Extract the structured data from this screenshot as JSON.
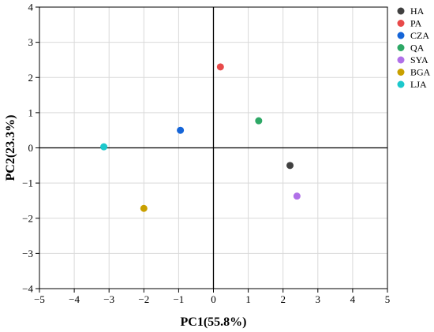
{
  "chart_data": {
    "type": "scatter",
    "title": "",
    "xlabel": "PC1(55.8%)",
    "ylabel": "PC2(23.3%)",
    "xlim": [
      -5,
      5
    ],
    "ylim": [
      -4,
      4
    ],
    "xticks": [
      "−5",
      "−4",
      "−3",
      "−2",
      "−1",
      "0",
      "1",
      "2",
      "3",
      "4",
      "5"
    ],
    "yticks": [
      "−4",
      "−3",
      "−2",
      "−1",
      "0",
      "1",
      "2",
      "3",
      "4"
    ],
    "grid": true,
    "legend_position": "top-right",
    "series": [
      {
        "name": "HA",
        "color": "#404040",
        "x": 2.2,
        "y": -0.5
      },
      {
        "name": "PA",
        "color": "#e84a4a",
        "x": 0.2,
        "y": 2.3
      },
      {
        "name": "CZA",
        "color": "#1565d8",
        "x": -0.95,
        "y": 0.5
      },
      {
        "name": "QA",
        "color": "#2ea866",
        "x": 1.3,
        "y": 0.77
      },
      {
        "name": "SYA",
        "color": "#b070e8",
        "x": 2.4,
        "y": -1.37
      },
      {
        "name": "BGA",
        "color": "#c9a000",
        "x": -2.0,
        "y": -1.72
      },
      {
        "name": "LJA",
        "color": "#1cc8cc",
        "x": -3.15,
        "y": 0.03
      }
    ]
  }
}
